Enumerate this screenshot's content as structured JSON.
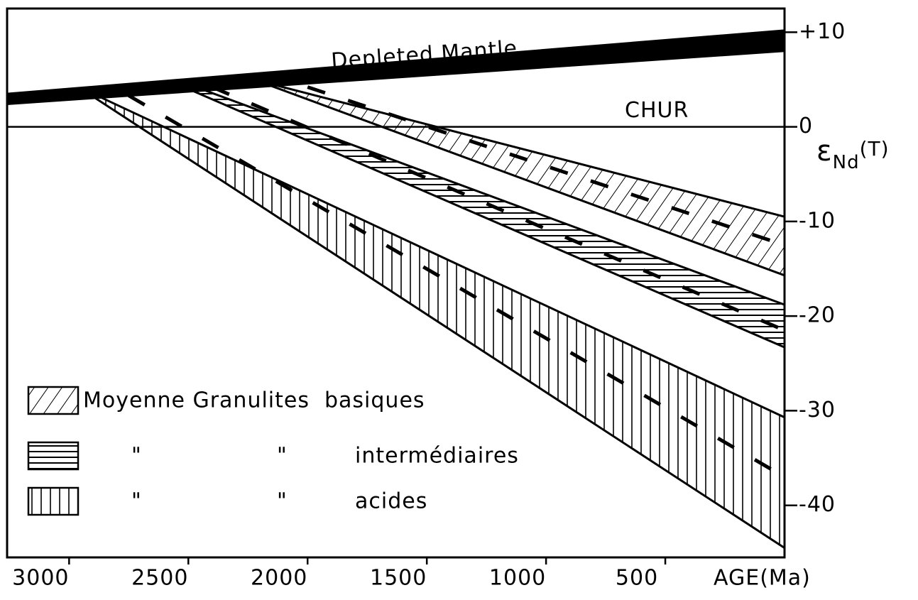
{
  "chart_data": {
    "type": "band",
    "xlabel": "AGE(Ma)",
    "ylabel": {
      "symbol": "ε",
      "sub": "Nd",
      "rest": "(T)"
    },
    "xlim": [
      3260,
      0
    ],
    "ylim": [
      -45.5,
      12.5
    ],
    "xticks": [
      3000,
      2500,
      2000,
      1500,
      1000,
      500
    ],
    "yticks": [
      {
        "value": 10,
        "label": "+10"
      },
      0,
      -10,
      -20,
      -30,
      -40
    ],
    "color": "#000000",
    "reference": {
      "name": "CHUR",
      "value": 0
    },
    "mantle": {
      "name": "Depleted Mantle",
      "x": [
        3260,
        0
      ],
      "upper": [
        3.6,
        10.3
      ],
      "lower": [
        2.3,
        7.9
      ]
    },
    "legend_prefix": "Moyenne Granulites",
    "ditto": "\"",
    "series": [
      {
        "name": "basiques",
        "pattern": "diagonal",
        "x": [
          2150,
          0
        ],
        "upper": [
          4.5,
          -9.5
        ],
        "lower": [
          4.3,
          -15.7
        ],
        "mean_x": [
          2000,
          0
        ],
        "mean": [
          4.2,
          -12.5
        ]
      },
      {
        "name": "intermédiaires",
        "pattern": "horizontal",
        "x": [
          2500,
          0
        ],
        "upper": [
          4.5,
          -18.8
        ],
        "lower": [
          4.0,
          -23.3
        ],
        "mean_x": [
          2400,
          0
        ],
        "mean": [
          4.2,
          -21.5
        ]
      },
      {
        "name": "acides",
        "pattern": "vertical",
        "x": [
          2900,
          0
        ],
        "upper": [
          3.5,
          -30.7
        ],
        "lower": [
          3.2,
          -44.5
        ],
        "mean_x": [
          2750,
          0
        ],
        "mean": [
          3.3,
          -37
        ]
      }
    ]
  }
}
